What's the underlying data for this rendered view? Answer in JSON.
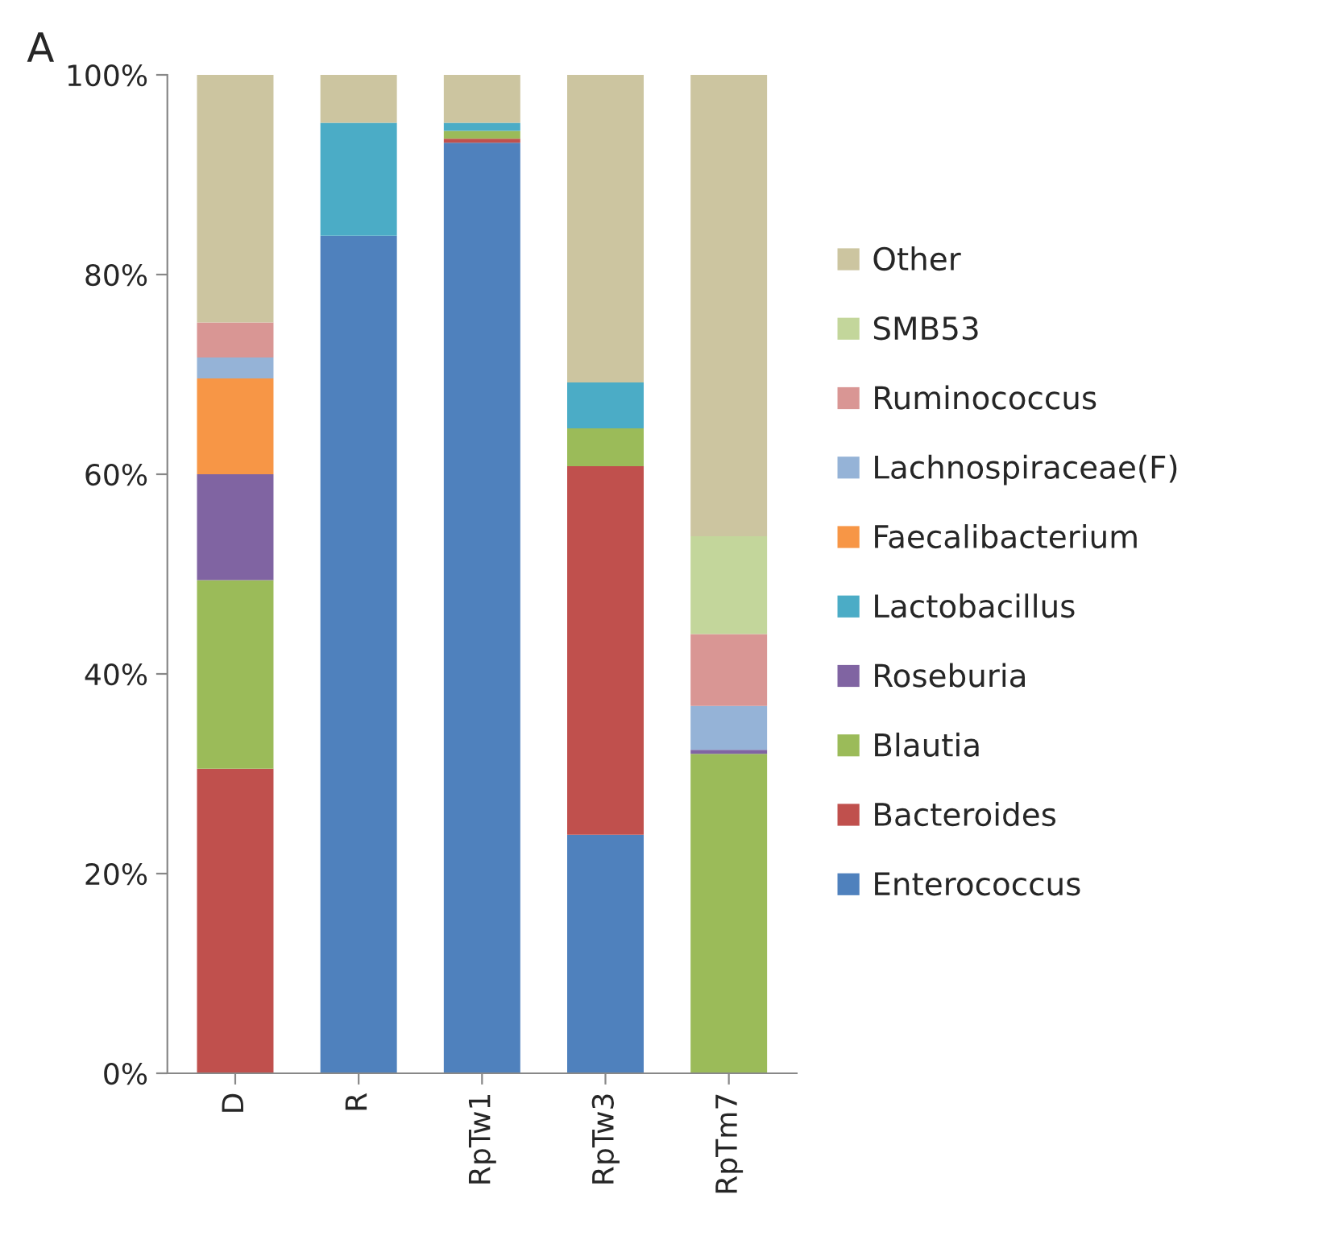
{
  "chart_data": {
    "type": "bar",
    "title": "A",
    "stacked": true,
    "legend": "right",
    "grid": false,
    "categories": [
      "D",
      "R",
      "RpTw1",
      "RpTw3",
      "RpTm7"
    ],
    "ylim": [
      0,
      100
    ],
    "yticks": [
      {
        "value": 0,
        "label": "0%"
      },
      {
        "value": 20,
        "label": "20%"
      },
      {
        "value": 40,
        "label": "40%"
      },
      {
        "value": 60,
        "label": "60%"
      },
      {
        "value": 80,
        "label": "80%"
      },
      {
        "value": 100,
        "label": "100%"
      }
    ],
    "series": [
      {
        "name": "Enterococcus",
        "color": "#4f81bd",
        "values": [
          0,
          83.9,
          93.2,
          23.9,
          0
        ]
      },
      {
        "name": "Bacteroides",
        "color": "#c0504d",
        "values": [
          30.5,
          0,
          0.4,
          36.9,
          0
        ]
      },
      {
        "name": "Blautia",
        "color": "#9bbb59",
        "values": [
          18.9,
          0,
          0.8,
          3.8,
          32.0
        ]
      },
      {
        "name": "Roseburia",
        "color": "#8064a2",
        "values": [
          10.6,
          0,
          0,
          0,
          0.4
        ]
      },
      {
        "name": "Lactobacillus",
        "color": "#4bacc6",
        "values": [
          0,
          11.3,
          0.8,
          4.6,
          0
        ]
      },
      {
        "name": "Faecalibacterium",
        "color": "#f79646",
        "values": [
          9.6,
          0,
          0,
          0,
          0
        ]
      },
      {
        "name": "Lachnospiraceae(F)",
        "color": "#95b3d7",
        "values": [
          2.1,
          0,
          0,
          0,
          4.4
        ]
      },
      {
        "name": "Ruminococcus",
        "color": "#d99694",
        "values": [
          3.5,
          0,
          0,
          0,
          7.2
        ]
      },
      {
        "name": "SMB53",
        "color": "#c3d69b",
        "values": [
          0,
          0,
          0,
          0,
          9.8
        ]
      },
      {
        "name": "Other",
        "color": "#ccc5a0",
        "values": [
          24.8,
          4.8,
          4.8,
          30.8,
          46.2
        ]
      }
    ]
  }
}
